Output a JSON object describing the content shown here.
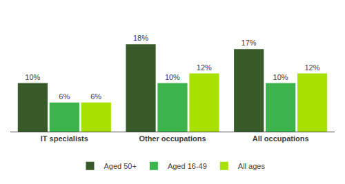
{
  "chart_data": {
    "type": "bar",
    "categories": [
      "IT specialists",
      "Other occupations",
      "All occupations"
    ],
    "series": [
      {
        "name": "Aged 50+",
        "color": "#375a28",
        "values": [
          10,
          18,
          17
        ],
        "value_labels": [
          "10%",
          "18%",
          "17%"
        ]
      },
      {
        "name": "Aged 16-49",
        "color": "#3cb44b",
        "values": [
          6,
          10,
          10
        ],
        "value_labels": [
          "6%",
          "10%",
          "10%"
        ]
      },
      {
        "name": "All ages",
        "color": "#a8e000",
        "values": [
          6,
          12,
          12
        ],
        "value_labels": [
          "6%",
          "12%",
          "12%"
        ]
      }
    ],
    "ylim": [
      0,
      25
    ],
    "grid": false,
    "legend": "bottom",
    "data_labels": true,
    "tick_labels": "x"
  }
}
